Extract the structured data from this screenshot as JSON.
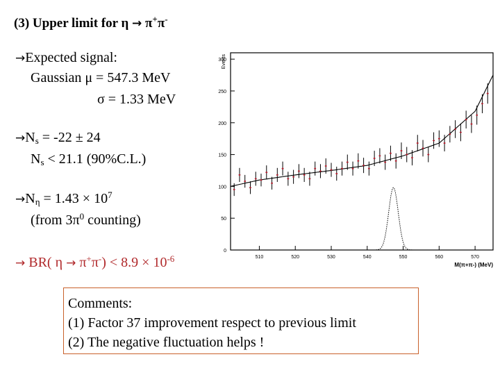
{
  "slide": {
    "title": {
      "prefix": "(3) Upper limit for ",
      "eta": "η",
      "arrow": "→",
      "pi": "π",
      "plus": "+",
      "pi2": "π",
      "minus": "-"
    },
    "signal": {
      "arrow": "→",
      "line1": "Expected signal:",
      "line2": "Gaussian μ  = 547.3 MeV",
      "line3": "σ  =   1.33 MeV"
    },
    "ns": {
      "arrow": "→",
      "l1a": "N",
      "l1sub": "s",
      "l1b": " = -22 ± 24",
      "l2a": "N",
      "l2sub": "s",
      "l2b": " < 21.1 (90%C.L.)"
    },
    "neta": {
      "arrow": "→",
      "a": "N",
      "sub": "η",
      "b": " = 1.43 × 10",
      "exp": "7",
      "l2a": "(from 3π",
      "l2exp": "0",
      "l2b": " counting)"
    },
    "br": {
      "arrow": "→",
      "a": " BR( η  ",
      "arrow2": "→",
      "b": " π",
      "sup1": "+",
      "c": "π",
      "sup2": "-",
      "d": ") < 8.9 × 10",
      "exp": "-6"
    },
    "comments": {
      "l1": "Comments:",
      "l2": "(1) Factor 37 improvement respect to previous limit",
      "l3": "(2) The negative fluctuation helps !"
    }
  },
  "chart_data": {
    "type": "scatter",
    "ylabel": "Events",
    "xlabel": "M(π+π-) (MeV)",
    "xlim": [
      502,
      575
    ],
    "ylim": [
      0,
      310
    ],
    "xticks": [
      "510",
      "520",
      "530",
      "540",
      "550",
      "560",
      "570"
    ],
    "yticks": [
      "0",
      "50",
      "100",
      "150",
      "200",
      "250",
      "300"
    ],
    "series": [
      {
        "type": "points_with_errors",
        "x": [
          503,
          504.5,
          506,
          507.5,
          509,
          510.5,
          512,
          513.5,
          515,
          516.5,
          518,
          519.5,
          521,
          522.5,
          524,
          525.5,
          527,
          528.5,
          530,
          531.5,
          533,
          534.5,
          536,
          537.5,
          539,
          540.5,
          542,
          543.5,
          545,
          546.5,
          548,
          549.5,
          551,
          552.5,
          554,
          555.5,
          557,
          558.5,
          560,
          561.5,
          563,
          564.5,
          566,
          567.5,
          569,
          570.5,
          572,
          573.5
        ],
        "y": [
          95,
          118,
          108,
          98,
          112,
          110,
          122,
          105,
          118,
          128,
          112,
          115,
          124,
          118,
          112,
          128,
          124,
          132,
          126,
          120,
          128,
          138,
          128,
          140,
          133,
          128,
          144,
          148,
          138,
          152,
          140,
          156,
          150,
          145,
          168,
          160,
          150,
          172,
          175,
          168,
          182,
          190,
          185,
          205,
          198,
          212,
          230,
          246
        ],
        "err": [
          10,
          11,
          10,
          10,
          11,
          10,
          11,
          10,
          11,
          11,
          11,
          11,
          11,
          11,
          11,
          11,
          11,
          12,
          11,
          11,
          11,
          12,
          11,
          12,
          12,
          11,
          12,
          12,
          12,
          12,
          12,
          13,
          12,
          12,
          13,
          13,
          12,
          13,
          13,
          13,
          13,
          14,
          14,
          14,
          14,
          15,
          15,
          16
        ]
      },
      {
        "type": "fit_curve",
        "x": [
          502,
          510,
          520,
          530,
          540,
          550,
          560,
          570,
          575
        ],
        "y": [
          100,
          110,
          118,
          125,
          133,
          148,
          168,
          218,
          275
        ]
      },
      {
        "type": "signal_gaussian",
        "mean": 547.3,
        "sigma": 1.33,
        "peak": 98
      }
    ]
  }
}
